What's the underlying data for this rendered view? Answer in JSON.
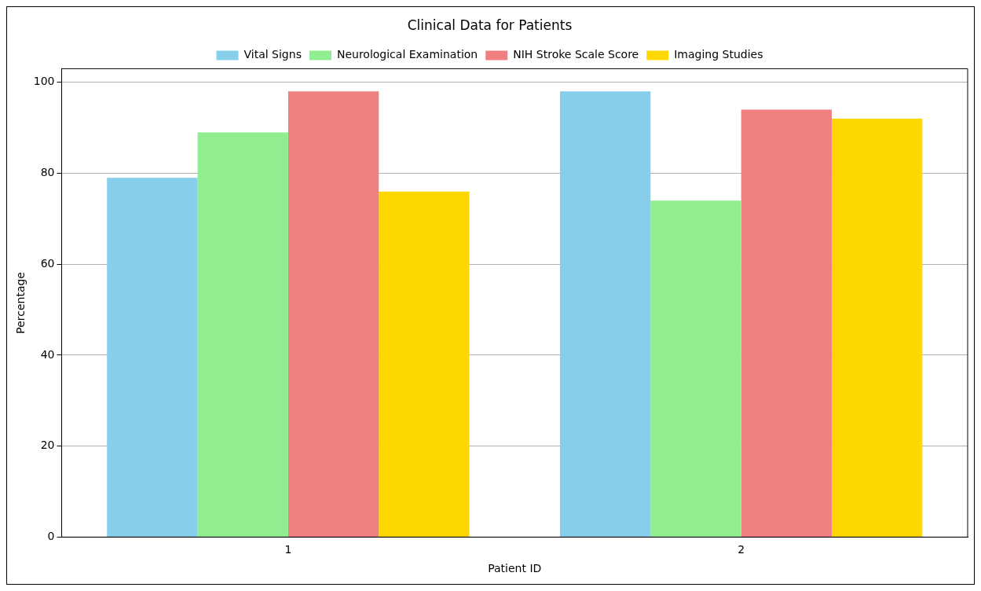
{
  "chart_data": {
    "type": "bar",
    "title": "Clinical Data for Patients",
    "xlabel": "Patient ID",
    "ylabel": "Percentage",
    "categories": [
      "1",
      "2"
    ],
    "series": [
      {
        "name": "Vital Signs",
        "color": "#87ceeb",
        "values": [
          79,
          98
        ]
      },
      {
        "name": "Neurological Examination",
        "color": "#90ee90",
        "values": [
          89,
          74
        ]
      },
      {
        "name": "NIH Stroke Scale Score",
        "color": "#f08080",
        "values": [
          98,
          94
        ]
      },
      {
        "name": "Imaging Studies",
        "color": "#ffd700",
        "values": [
          76,
          92
        ]
      }
    ],
    "ylim": [
      0,
      103
    ],
    "yticks": [
      0,
      20,
      40,
      60,
      80,
      100
    ],
    "grid": "y",
    "legend": "top"
  }
}
